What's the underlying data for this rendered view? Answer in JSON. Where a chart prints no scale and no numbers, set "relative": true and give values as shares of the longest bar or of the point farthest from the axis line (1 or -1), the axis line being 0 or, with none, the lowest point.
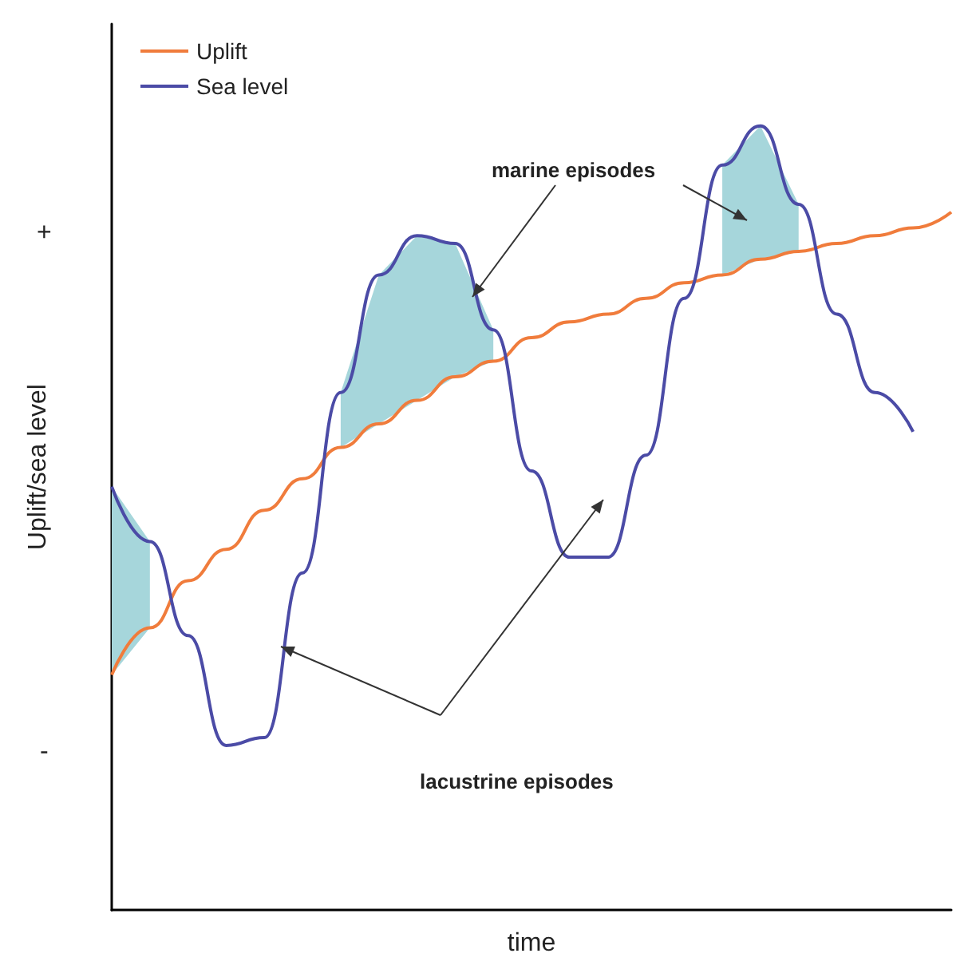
{
  "chart_data": {
    "type": "line",
    "relative": true,
    "xlabel": "time",
    "ylabel": "Uplift/sea level",
    "categories": [
      null,
      null,
      null,
      null,
      null,
      null,
      null,
      null,
      null,
      null,
      null,
      null,
      null,
      null,
      null,
      null,
      null,
      null,
      null,
      null,
      null,
      null,
      null
    ],
    "series": [
      {
        "name": "Uplift",
        "color": "#f07c3c",
        "values": [
          0.3,
          0.36,
          0.42,
          0.46,
          0.51,
          0.55,
          0.59,
          0.62,
          0.65,
          0.68,
          0.7,
          0.73,
          0.75,
          0.76,
          0.78,
          0.8,
          0.81,
          0.83,
          0.84,
          0.85,
          0.86,
          0.87,
          0.89
        ]
      },
      {
        "name": "Sea level",
        "color": "#4b4ba6",
        "values": [
          0.54,
          0.47,
          0.35,
          0.21,
          0.22,
          0.43,
          0.66,
          0.81,
          0.86,
          0.85,
          0.74,
          0.56,
          0.45,
          0.45,
          0.58,
          0.78,
          0.95,
          1.0,
          0.9,
          0.76,
          0.66,
          0.61,
          null
        ],
        "lower": [
          0.3,
          0.36,
          null,
          null,
          null,
          null,
          0.59,
          0.62,
          0.65,
          0.68,
          0.7,
          null,
          null,
          null,
          null,
          null,
          0.81,
          0.83,
          0.84,
          null,
          null,
          null,
          null
        ],
        "upper": [
          0.54,
          0.47,
          null,
          null,
          null,
          null,
          0.66,
          0.81,
          0.86,
          0.85,
          0.74,
          null,
          null,
          null,
          null,
          null,
          0.95,
          1.0,
          0.9,
          null,
          null,
          null,
          null
        ]
      }
    ],
    "annotations": [
      "+",
      "-",
      "marine episodes",
      "lacustrine episodes"
    ],
    "legend": "top left",
    "marker": "none",
    "line_style": "solid",
    "grid": false
  }
}
